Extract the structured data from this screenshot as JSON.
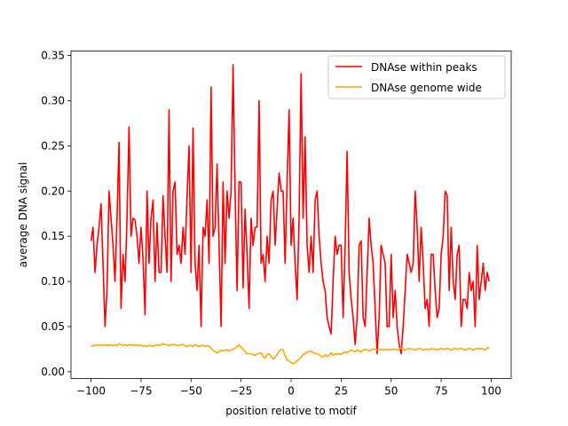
{
  "chart_data": {
    "type": "line",
    "title": "",
    "xlabel": "position relative to motif",
    "ylabel": "average DNA signal",
    "xlim": [
      -110,
      110
    ],
    "ylim": [
      -0.0075,
      0.355
    ],
    "xticks": [
      -100,
      -75,
      -50,
      -25,
      0,
      25,
      50,
      75,
      100
    ],
    "xtick_labels": [
      "−100",
      "−75",
      "−50",
      "−25",
      "0",
      "25",
      "50",
      "75",
      "100"
    ],
    "yticks": [
      0.0,
      0.05,
      0.1,
      0.15,
      0.2,
      0.25,
      0.3,
      0.35
    ],
    "ytick_labels": [
      "0.00",
      "0.05",
      "0.10",
      "0.15",
      "0.20",
      "0.25",
      "0.30",
      "0.35"
    ],
    "grid": false,
    "legend_position": "top-right",
    "series": [
      {
        "name": "DNAse within peaks",
        "color": "#ff0000",
        "x": [
          -100,
          -99,
          -98,
          -97,
          -96,
          -95,
          -94,
          -93,
          -92,
          -91,
          -90,
          -89,
          -88,
          -87,
          -86,
          -85,
          -84,
          -83,
          -82,
          -81,
          -80,
          -79,
          -78,
          -77,
          -76,
          -75,
          -74,
          -73,
          -72,
          -71,
          -70,
          -69,
          -68,
          -67,
          -66,
          -65,
          -64,
          -63,
          -62,
          -61,
          -60,
          -59,
          -58,
          -57,
          -56,
          -55,
          -54,
          -53,
          -52,
          -51,
          -50,
          -49,
          -48,
          -47,
          -46,
          -45,
          -44,
          -43,
          -42,
          -41,
          -40,
          -39,
          -38,
          -37,
          -36,
          -35,
          -34,
          -33,
          -32,
          -31,
          -30,
          -29,
          -28,
          -27,
          -26,
          -25,
          -24,
          -23,
          -22,
          -21,
          -20,
          -19,
          -18,
          -17,
          -16,
          -15,
          -14,
          -13,
          -12,
          -11,
          -10,
          -9,
          -8,
          -7,
          -6,
          -5,
          -4,
          -3,
          -2,
          -1,
          0,
          1,
          2,
          3,
          4,
          5,
          6,
          7,
          8,
          9,
          10,
          11,
          12,
          13,
          14,
          15,
          16,
          17,
          18,
          19,
          20,
          21,
          22,
          23,
          24,
          25,
          26,
          27,
          28,
          29,
          30,
          31,
          32,
          33,
          34,
          35,
          36,
          37,
          38,
          39,
          40,
          41,
          42,
          43,
          44,
          45,
          46,
          47,
          48,
          49,
          50,
          51,
          52,
          53,
          54,
          55,
          56,
          57,
          58,
          59,
          60,
          61,
          62,
          63,
          64,
          65,
          66,
          67,
          68,
          69,
          70,
          71,
          72,
          73,
          74,
          75,
          76,
          77,
          78,
          79,
          80,
          81,
          82,
          83,
          84,
          85,
          86,
          87,
          88,
          89,
          90,
          91,
          92,
          93,
          94,
          95,
          96,
          97,
          98,
          99
        ],
        "values": [
          0.145,
          0.16,
          0.11,
          0.14,
          0.16,
          0.186,
          0.12,
          0.05,
          0.09,
          0.2,
          0.17,
          0.14,
          0.1,
          0.17,
          0.254,
          0.07,
          0.13,
          0.1,
          0.17,
          0.271,
          0.15,
          0.17,
          0.168,
          0.15,
          0.12,
          0.16,
          0.125,
          0.063,
          0.2,
          0.12,
          0.17,
          0.19,
          0.1,
          0.165,
          0.11,
          0.11,
          0.195,
          0.15,
          0.11,
          0.29,
          0.1,
          0.2,
          0.21,
          0.13,
          0.14,
          0.12,
          0.16,
          0.13,
          0.194,
          0.25,
          0.11,
          0.27,
          0.12,
          0.09,
          0.14,
          0.05,
          0.16,
          0.15,
          0.19,
          0.12,
          0.315,
          0.15,
          0.16,
          0.23,
          0.14,
          0.05,
          0.21,
          0.12,
          0.2,
          0.17,
          0.2,
          0.34,
          0.2,
          0.09,
          0.21,
          0.21,
          0.093,
          0.18,
          0.13,
          0.07,
          0.17,
          0.14,
          0.16,
          0.16,
          0.3,
          0.12,
          0.13,
          0.1,
          0.15,
          0.12,
          0.19,
          0.2,
          0.14,
          0.18,
          0.22,
          0.2,
          0.2,
          0.12,
          0.21,
          0.29,
          0.14,
          0.17,
          0.12,
          0.08,
          0.17,
          0.33,
          0.17,
          0.26,
          0.14,
          0.11,
          0.15,
          0.11,
          0.19,
          0.2,
          0.15,
          0.12,
          0.1,
          0.09,
          0.06,
          0.05,
          0.042,
          0.1,
          0.15,
          0.13,
          0.14,
          0.14,
          0.06,
          0.14,
          0.244,
          0.11,
          0.08,
          0.06,
          0.03,
          0.06,
          0.14,
          0.145,
          0.06,
          0.05,
          0.11,
          0.17,
          0.14,
          0.12,
          0.07,
          0.02,
          0.06,
          0.14,
          0.13,
          0.12,
          0.05,
          0.05,
          0.13,
          0.06,
          0.09,
          0.05,
          0.03,
          0.02,
          0.05,
          0.09,
          0.13,
          0.12,
          0.11,
          0.12,
          0.2,
          0.16,
          0.1,
          0.16,
          0.12,
          0.07,
          0.08,
          0.05,
          0.13,
          0.13,
          0.09,
          0.06,
          0.07,
          0.13,
          0.15,
          0.2,
          0.195,
          0.09,
          0.16,
          0.1,
          0.08,
          0.13,
          0.14,
          0.05,
          0.08,
          0.08,
          0.07,
          0.11,
          0.09,
          0.1,
          0.05,
          0.14,
          0.08,
          0.1,
          0.12,
          0.09,
          0.11,
          0.1
        ],
        "values_override_check": false
      },
      {
        "name": "DNAse genome wide",
        "color": "#ffa500",
        "x": [
          -100,
          -99,
          -98,
          -97,
          -96,
          -95,
          -94,
          -93,
          -92,
          -91,
          -90,
          -89,
          -88,
          -87,
          -86,
          -85,
          -84,
          -83,
          -82,
          -81,
          -80,
          -79,
          -78,
          -77,
          -76,
          -75,
          -74,
          -73,
          -72,
          -71,
          -70,
          -69,
          -68,
          -67,
          -66,
          -65,
          -64,
          -63,
          -62,
          -61,
          -60,
          -59,
          -58,
          -57,
          -56,
          -55,
          -54,
          -53,
          -52,
          -51,
          -50,
          -49,
          -48,
          -47,
          -46,
          -45,
          -44,
          -43,
          -42,
          -41,
          -40,
          -39,
          -38,
          -37,
          -36,
          -35,
          -34,
          -33,
          -32,
          -31,
          -30,
          -29,
          -28,
          -27,
          -26,
          -25,
          -24,
          -23,
          -22,
          -21,
          -20,
          -19,
          -18,
          -17,
          -16,
          -15,
          -14,
          -13,
          -12,
          -11,
          -10,
          -9,
          -8,
          -7,
          -6,
          -5,
          -4,
          -3,
          -2,
          -1,
          0,
          1,
          2,
          3,
          4,
          5,
          6,
          7,
          8,
          9,
          10,
          11,
          12,
          13,
          14,
          15,
          16,
          17,
          18,
          19,
          20,
          21,
          22,
          23,
          24,
          25,
          26,
          27,
          28,
          29,
          30,
          31,
          32,
          33,
          34,
          35,
          36,
          37,
          38,
          39,
          40,
          41,
          42,
          43,
          44,
          45,
          46,
          47,
          48,
          49,
          50,
          51,
          52,
          53,
          54,
          55,
          56,
          57,
          58,
          59,
          60,
          61,
          62,
          63,
          64,
          65,
          66,
          67,
          68,
          69,
          70,
          71,
          72,
          73,
          74,
          75,
          76,
          77,
          78,
          79,
          80,
          81,
          82,
          83,
          84,
          85,
          86,
          87,
          88,
          89,
          90,
          91,
          92,
          93,
          94,
          95,
          96,
          97,
          98,
          99
        ],
        "values": [
          0.028,
          0.029,
          0.029,
          0.03,
          0.029,
          0.03,
          0.029,
          0.03,
          0.029,
          0.03,
          0.029,
          0.029,
          0.03,
          0.029,
          0.031,
          0.03,
          0.029,
          0.03,
          0.029,
          0.03,
          0.03,
          0.029,
          0.03,
          0.029,
          0.029,
          0.03,
          0.028,
          0.029,
          0.028,
          0.029,
          0.029,
          0.028,
          0.029,
          0.03,
          0.029,
          0.03,
          0.031,
          0.03,
          0.03,
          0.029,
          0.03,
          0.03,
          0.03,
          0.029,
          0.029,
          0.03,
          0.03,
          0.029,
          0.028,
          0.029,
          0.029,
          0.028,
          0.03,
          0.029,
          0.028,
          0.029,
          0.029,
          0.028,
          0.029,
          0.028,
          0.026,
          0.024,
          0.022,
          0.021,
          0.022,
          0.024,
          0.023,
          0.024,
          0.024,
          0.023,
          0.024,
          0.025,
          0.026,
          0.028,
          0.03,
          0.027,
          0.025,
          0.022,
          0.02,
          0.02,
          0.02,
          0.019,
          0.018,
          0.02,
          0.02,
          0.021,
          0.017,
          0.015,
          0.019,
          0.02,
          0.017,
          0.014,
          0.016,
          0.019,
          0.022,
          0.025,
          0.024,
          0.018,
          0.013,
          0.012,
          0.01,
          0.009,
          0.01,
          0.012,
          0.014,
          0.016,
          0.019,
          0.02,
          0.022,
          0.022,
          0.023,
          0.021,
          0.02,
          0.02,
          0.019,
          0.017,
          0.016,
          0.019,
          0.017,
          0.018,
          0.021,
          0.018,
          0.02,
          0.019,
          0.02,
          0.019,
          0.021,
          0.022,
          0.021,
          0.023,
          0.024,
          0.023,
          0.022,
          0.024,
          0.023,
          0.022,
          0.024,
          0.025,
          0.024,
          0.023,
          0.024,
          0.025,
          0.025,
          0.024,
          0.024,
          0.025,
          0.024,
          0.025,
          0.024,
          0.025,
          0.024,
          0.025,
          0.025,
          0.024,
          0.025,
          0.026,
          0.025,
          0.024,
          0.025,
          0.026,
          0.025,
          0.025,
          0.024,
          0.025,
          0.026,
          0.025,
          0.024,
          0.025,
          0.025,
          0.024,
          0.026,
          0.025,
          0.025,
          0.024,
          0.025,
          0.026,
          0.025,
          0.025,
          0.026,
          0.025,
          0.024,
          0.025,
          0.026,
          0.025,
          0.025,
          0.026,
          0.025,
          0.024,
          0.025,
          0.026,
          0.025,
          0.024,
          0.025,
          0.026,
          0.025,
          0.026,
          0.025,
          0.024,
          0.026,
          0.027
        ]
      }
    ]
  }
}
